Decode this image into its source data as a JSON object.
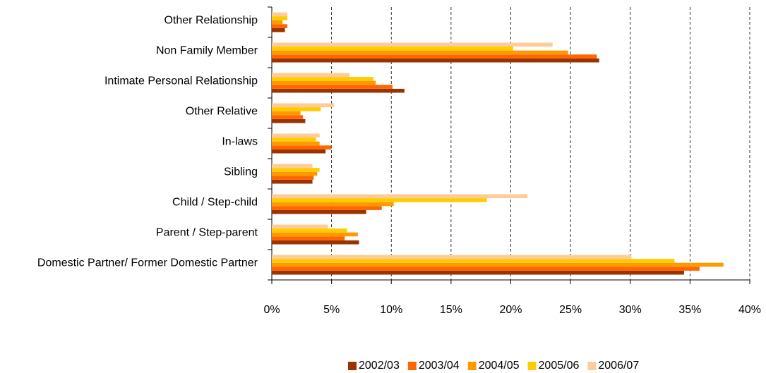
{
  "chart_data": {
    "type": "hbar",
    "categories": [
      "Other Relationship",
      "Non Family Member",
      "Intimate Personal Relationship",
      "Other Relative",
      "In-laws",
      "Sibling",
      "Child / Step-child",
      "Parent / Step-parent",
      "Domestic Partner/ Former Domestic Partner"
    ],
    "series": [
      {
        "name": "2002/03",
        "color": "#993300",
        "values": [
          1.1,
          27.4,
          11.1,
          2.8,
          4.5,
          3.4,
          7.9,
          7.3,
          34.5
        ]
      },
      {
        "name": "2003/04",
        "color": "#ff6600",
        "values": [
          1.3,
          27.2,
          10.1,
          2.6,
          5.0,
          3.5,
          9.2,
          6.1,
          35.8
        ]
      },
      {
        "name": "2004/05",
        "color": "#ff9900",
        "values": [
          0.9,
          24.8,
          8.7,
          2.4,
          4.0,
          3.8,
          10.2,
          7.2,
          37.8
        ]
      },
      {
        "name": "2005/06",
        "color": "#ffcc00",
        "values": [
          1.3,
          20.2,
          8.5,
          4.1,
          3.7,
          4.0,
          18.0,
          6.3,
          33.7
        ]
      },
      {
        "name": "2006/07",
        "color": "#ffcc99",
        "values": [
          1.3,
          23.5,
          6.5,
          5.2,
          4.0,
          3.4,
          21.4,
          4.7,
          30.1
        ]
      }
    ],
    "xlim": [
      0,
      40
    ],
    "xticks": [
      {
        "value": 0,
        "label": "0%"
      },
      {
        "value": 5,
        "label": "5%"
      },
      {
        "value": 10,
        "label": "10%"
      },
      {
        "value": 15,
        "label": "15%"
      },
      {
        "value": 20,
        "label": "20%"
      },
      {
        "value": 25,
        "label": "25%"
      },
      {
        "value": 30,
        "label": "30%"
      },
      {
        "value": 35,
        "label": "35%"
      },
      {
        "value": 40,
        "label": "40%"
      }
    ],
    "grid": true,
    "legend": "bottom"
  }
}
